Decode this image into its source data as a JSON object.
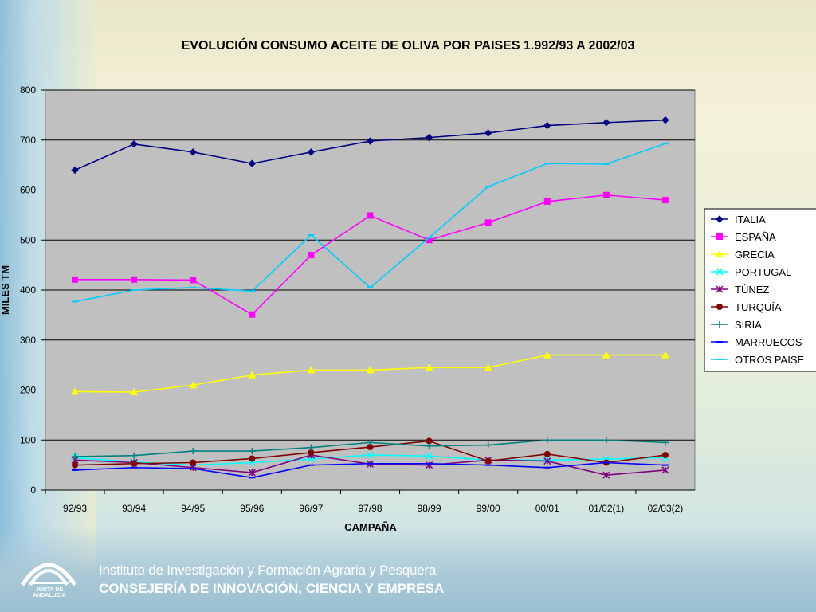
{
  "footer": {
    "logo_text": "JUNTA DE ANDALUCIA",
    "institute": "Instituto de Investigación y Formación Agraria y Pesquera",
    "ministry": "CONSEJERÍA DE INNOVACIÓN, CIENCIA Y EMPRESA"
  },
  "chart_data": {
    "type": "line",
    "title": "EVOLUCIÓN CONSUMO ACEITE DE OLIVA POR PAISES 1.992/93 A 2002/03",
    "xlabel": "CAMPAÑA",
    "ylabel": "MILES TM",
    "ylim": [
      0,
      800
    ],
    "yticks": [
      "0",
      "100",
      "200",
      "300",
      "400",
      "500",
      "600",
      "700",
      "800"
    ],
    "grid": true,
    "legend": "right",
    "categories": [
      "92/93",
      "93/94",
      "94/95",
      "95/96",
      "96/97",
      "97/98",
      "98/99",
      "99/00",
      "00/01",
      "01/02(1)",
      "02/03(2)"
    ],
    "series": [
      {
        "name": "ITALIA",
        "color": "#000080",
        "marker": "diamond",
        "values": [
          640,
          692,
          676,
          653,
          676,
          698,
          705,
          714,
          729,
          735,
          740
        ]
      },
      {
        "name": "ESPAÑA",
        "color": "#ff00ff",
        "marker": "square",
        "values": [
          421,
          421,
          420,
          351,
          470,
          549,
          500,
          535,
          577,
          590,
          580
        ]
      },
      {
        "name": "GRECIA",
        "color": "#ffff00",
        "marker": "triangle",
        "values": [
          197,
          196,
          210,
          230,
          240,
          240,
          245,
          245,
          270,
          270,
          270
        ]
      },
      {
        "name": "PORTUGAL",
        "color": "#00ffff",
        "marker": "x",
        "values": [
          65,
          56,
          50,
          55,
          62,
          70,
          68,
          60,
          60,
          62,
          65
        ]
      },
      {
        "name": "TÚNEZ",
        "color": "#800080",
        "marker": "asterisk",
        "values": [
          60,
          55,
          45,
          35,
          70,
          52,
          50,
          60,
          58,
          30,
          40
        ]
      },
      {
        "name": "TURQUÍA",
        "color": "#800000",
        "marker": "circle",
        "values": [
          50,
          53,
          55,
          63,
          75,
          86,
          98,
          58,
          72,
          55,
          70
        ]
      },
      {
        "name": "SIRIA",
        "color": "#008080",
        "marker": "plus",
        "values": [
          67,
          69,
          78,
          78,
          85,
          95,
          88,
          90,
          100,
          100,
          95
        ]
      },
      {
        "name": "MARRUECOS",
        "color": "#0000ff",
        "marker": "dash",
        "values": [
          40,
          45,
          43,
          25,
          50,
          53,
          53,
          50,
          45,
          55,
          50
        ]
      },
      {
        "name": "OTROS PAISE",
        "color": "#00ccff",
        "marker": "dash",
        "values": [
          377,
          400,
          405,
          398,
          510,
          405,
          505,
          607,
          653,
          652,
          693
        ]
      }
    ]
  }
}
